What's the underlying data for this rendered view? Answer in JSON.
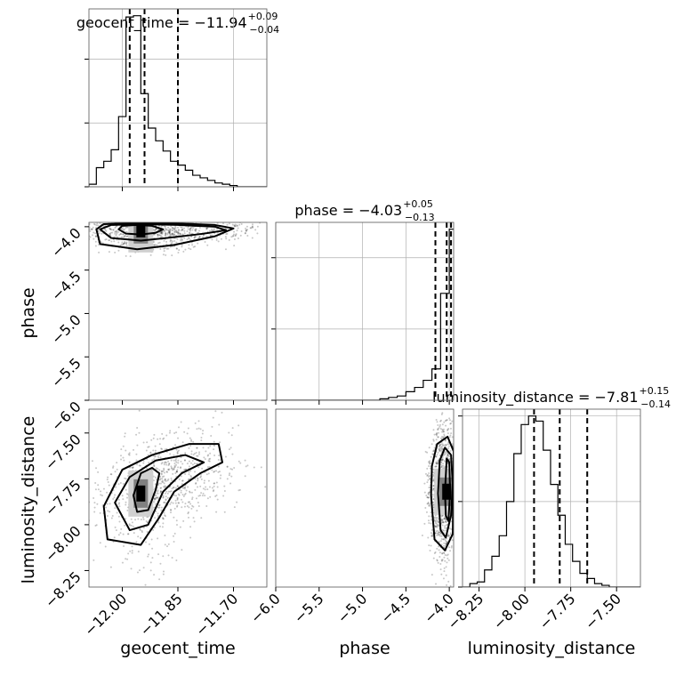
{
  "chart_data": {
    "type": "corner",
    "parameters": [
      {
        "key": "geocent_time",
        "label": "geocent_time",
        "title": {
          "name": "geocent_time",
          "value": "−11.94",
          "plus": "+0.09",
          "minus": "−0.04"
        },
        "range": [
          -12.09,
          -11.61
        ],
        "ticks": [
          -12.0,
          -11.85,
          -11.7
        ],
        "tick_labels": [
          "−12.00",
          "−11.85",
          "−11.70"
        ],
        "quantiles": [
          -11.98,
          -11.94,
          -11.85
        ],
        "hist_step": 0.02,
        "hist_counts": [
          0.02,
          0.15,
          0.2,
          0.29,
          0.55,
          1.33,
          1.34,
          0.73,
          0.46,
          0.36,
          0.28,
          0.2,
          0.17,
          0.13,
          0.09,
          0.07,
          0.05,
          0.03,
          0.02,
          0.01,
          0.0,
          0.0,
          0.0,
          0.0
        ],
        "hist_ticks": [
          0.0,
          0.5,
          1.0
        ]
      },
      {
        "key": "phase",
        "label": "phase",
        "title": {
          "name": "phase",
          "value": "−4.03",
          "plus": "+0.05",
          "minus": "−0.13"
        },
        "range": [
          -6.0,
          -3.95
        ],
        "ticks": [
          -6.0,
          -5.5,
          -5.0,
          -4.5,
          -4.0
        ],
        "tick_labels": [
          "−6.0",
          "−5.5",
          "−5.0",
          "−4.5",
          "−4.0"
        ],
        "quantiles": [
          -4.16,
          -4.03,
          -3.98
        ],
        "hist_step": 0.1,
        "hist_counts": [
          0.0,
          0.0,
          0.0,
          0.0,
          0.0,
          0.0,
          0.0,
          0.0,
          0.0,
          0.0,
          0.0,
          0.0,
          0.01,
          0.02,
          0.03,
          0.06,
          0.09,
          0.14,
          0.22,
          0.75,
          1.2
        ],
        "hist_ticks": [
          0.0,
          0.5,
          1.0
        ]
      },
      {
        "key": "luminosity_distance",
        "label": "luminosity_distance",
        "title": {
          "name": "luminosity_distance",
          "value": "−7.81",
          "plus": "+0.15",
          "minus": "−0.14"
        },
        "range": [
          -8.34,
          -7.37
        ],
        "ticks": [
          -8.25,
          -8.0,
          -7.75,
          -7.5
        ],
        "tick_labels": [
          "−8.25",
          "−8.00",
          "−7.75",
          "−7.50"
        ],
        "quantiles": [
          -7.95,
          -7.81,
          -7.66
        ],
        "hist_step": 0.04,
        "hist_counts": [
          0.0,
          0.02,
          0.03,
          0.1,
          0.18,
          0.3,
          0.5,
          0.78,
          0.95,
          1.0,
          0.97,
          0.8,
          0.6,
          0.42,
          0.25,
          0.15,
          0.08,
          0.05,
          0.02,
          0.01,
          0.0,
          0.0,
          0.0,
          0.0,
          0.0
        ],
        "hist_ticks": [
          0.0,
          0.5,
          1.0
        ]
      }
    ],
    "pairs": [
      {
        "x": "geocent_time",
        "y": "phase",
        "ylim": [
          -6.0,
          -3.95
        ],
        "yticks": [
          -4.0,
          -4.5,
          -5.0,
          -5.5,
          -6.0
        ],
        "ytick_labels": [
          "−4.0",
          "−4.5",
          "−5.0",
          "−5.5",
          "−6.0"
        ],
        "peak": [
          -11.95,
          -4.03
        ],
        "contours": [
          [
            [
              -12.01,
              -4.03
            ],
            [
              -11.99,
              -4.08
            ],
            [
              -11.95,
              -4.09
            ],
            [
              -11.91,
              -4.07
            ],
            [
              -11.89,
              -4.03
            ],
            [
              -11.92,
              -3.99
            ],
            [
              -11.96,
              -3.98
            ],
            [
              -12.0,
              -3.99
            ]
          ],
          [
            [
              -12.06,
              -4.03
            ],
            [
              -12.03,
              -4.13
            ],
            [
              -11.95,
              -4.16
            ],
            [
              -11.88,
              -4.13
            ],
            [
              -11.78,
              -4.08
            ],
            [
              -11.72,
              -4.04
            ],
            [
              -11.75,
              -4.0
            ],
            [
              -11.85,
              -3.98
            ],
            [
              -11.95,
              -3.97
            ],
            [
              -12.03,
              -3.98
            ]
          ],
          [
            [
              -12.07,
              -4.03
            ],
            [
              -12.06,
              -4.2
            ],
            [
              -11.96,
              -4.26
            ],
            [
              -11.86,
              -4.21
            ],
            [
              -11.75,
              -4.11
            ],
            [
              -11.7,
              -4.02
            ],
            [
              -11.75,
              -3.98
            ],
            [
              -11.87,
              -3.96
            ],
            [
              -11.98,
              -3.96
            ],
            [
              -12.05,
              -3.97
            ]
          ]
        ]
      },
      {
        "x": "geocent_time",
        "y": "luminosity_distance",
        "ylim": [
          -8.34,
          -7.37
        ],
        "yticks": [
          -7.5,
          -7.75,
          -8.0,
          -8.25
        ],
        "ytick_labels": [
          "−7.50",
          "−7.75",
          "−8.00",
          "−8.25"
        ],
        "peak": [
          -11.95,
          -7.83
        ],
        "contours": [
          [
            [
              -11.97,
              -7.84
            ],
            [
              -11.96,
              -7.93
            ],
            [
              -11.93,
              -7.92
            ],
            [
              -11.91,
              -7.81
            ],
            [
              -11.9,
              -7.72
            ],
            [
              -11.92,
              -7.69
            ],
            [
              -11.95,
              -7.72
            ]
          ],
          [
            [
              -12.02,
              -7.88
            ],
            [
              -11.98,
              -8.03
            ],
            [
              -11.93,
              -8.0
            ],
            [
              -11.89,
              -7.82
            ],
            [
              -11.84,
              -7.72
            ],
            [
              -11.78,
              -7.66
            ],
            [
              -11.83,
              -7.62
            ],
            [
              -11.91,
              -7.65
            ],
            [
              -11.98,
              -7.74
            ]
          ],
          [
            [
              -12.05,
              -7.9
            ],
            [
              -12.04,
              -8.08
            ],
            [
              -11.95,
              -8.11
            ],
            [
              -11.9,
              -7.96
            ],
            [
              -11.86,
              -7.82
            ],
            [
              -11.79,
              -7.72
            ],
            [
              -11.73,
              -7.66
            ],
            [
              -11.74,
              -7.56
            ],
            [
              -11.82,
              -7.56
            ],
            [
              -11.92,
              -7.62
            ],
            [
              -12.0,
              -7.7
            ]
          ]
        ]
      },
      {
        "x": "phase",
        "y": "luminosity_distance",
        "ylim": [
          -8.34,
          -7.37
        ],
        "yticks": [],
        "ytick_labels": [],
        "peak": [
          -4.03,
          -7.82
        ],
        "contours": [
          [
            [
              -4.05,
              -7.82
            ],
            [
              -4.04,
              -7.95
            ],
            [
              -4.01,
              -7.98
            ],
            [
              -3.99,
              -7.82
            ],
            [
              -4.0,
              -7.66
            ],
            [
              -4.03,
              -7.64
            ]
          ],
          [
            [
              -4.13,
              -7.83
            ],
            [
              -4.1,
              -8.03
            ],
            [
              -4.04,
              -8.07
            ],
            [
              -3.98,
              -7.95
            ],
            [
              -3.96,
              -7.78
            ],
            [
              -3.98,
              -7.62
            ],
            [
              -4.05,
              -7.58
            ],
            [
              -4.11,
              -7.65
            ]
          ],
          [
            [
              -4.21,
              -7.84
            ],
            [
              -4.17,
              -8.08
            ],
            [
              -4.05,
              -8.14
            ],
            [
              -3.96,
              -8.05
            ],
            [
              -3.95,
              -7.6
            ],
            [
              -4.02,
              -7.52
            ],
            [
              -4.14,
              -7.56
            ],
            [
              -4.2,
              -7.68
            ]
          ]
        ]
      }
    ]
  }
}
